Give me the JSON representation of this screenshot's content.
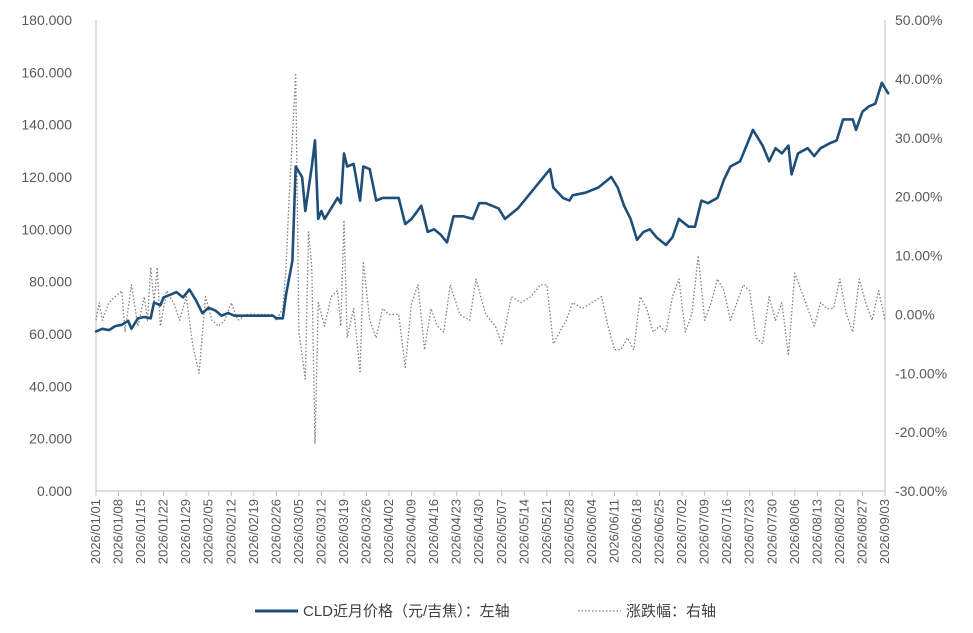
{
  "chart_data": {
    "type": "line",
    "x_ticks": [
      "2026/01/01",
      "2026/01/08",
      "2026/01/15",
      "2026/01/22",
      "2026/01/29",
      "2026/02/05",
      "2026/02/12",
      "2026/02/19",
      "2026/02/26",
      "2026/03/05",
      "2026/03/12",
      "2026/03/19",
      "2026/03/26",
      "2026/04/02",
      "2026/04/09",
      "2026/04/16",
      "2026/04/23",
      "2026/04/30",
      "2026/05/07",
      "2026/05/14",
      "2026/05/21",
      "2026/05/28",
      "2026/06/04",
      "2026/06/11",
      "2026/06/18",
      "2026/06/25",
      "2026/07/02",
      "2026/07/09",
      "2026/07/16",
      "2026/07/23",
      "2026/07/30",
      "2026/08/06",
      "2026/08/13",
      "2026/08/20",
      "2026/08/27",
      "2026/09/03"
    ],
    "y_left": {
      "ylim": [
        0,
        180
      ],
      "ticks": [
        "0.000",
        "20.000",
        "40.000",
        "60.000",
        "80.000",
        "100.000",
        "120.000",
        "140.000",
        "160.000",
        "180.000"
      ]
    },
    "y_right": {
      "ylim": [
        -30,
        50
      ],
      "ticks": [
        "-30.00%",
        "-20.00%",
        "-10.00%",
        "0.00%",
        "10.00%",
        "20.00%",
        "30.00%",
        "40.00%",
        "50.00%"
      ]
    },
    "grid": false,
    "legend_position": "bottom",
    "series": [
      {
        "name": "CLD近月价格（元/吉焦）：左轴",
        "axis": "left",
        "style": "solid",
        "color": "#1F4E79",
        "points": [
          [
            "2026/01/01",
            61
          ],
          [
            "2026/01/03",
            62
          ],
          [
            "2026/01/05",
            61.5
          ],
          [
            "2026/01/07",
            63
          ],
          [
            "2026/01/09",
            63.5
          ],
          [
            "2026/01/11",
            65
          ],
          [
            "2026/01/12",
            62
          ],
          [
            "2026/01/14",
            66
          ],
          [
            "2026/01/16",
            66.5
          ],
          [
            "2026/01/18",
            66
          ],
          [
            "2026/01/19",
            72
          ],
          [
            "2026/01/21",
            71
          ],
          [
            "2026/01/22",
            74
          ],
          [
            "2026/01/24",
            75
          ],
          [
            "2026/01/26",
            76
          ],
          [
            "2026/01/28",
            74
          ],
          [
            "2026/01/30",
            77
          ],
          [
            "2026/02/01",
            73
          ],
          [
            "2026/02/03",
            68
          ],
          [
            "2026/02/05",
            70
          ],
          [
            "2026/02/07",
            69
          ],
          [
            "2026/02/09",
            67
          ],
          [
            "2026/02/11",
            68
          ],
          [
            "2026/02/13",
            67
          ],
          [
            "2026/02/17",
            67
          ],
          [
            "2026/02/21",
            67
          ],
          [
            "2026/02/25",
            67
          ],
          [
            "2026/02/26",
            66
          ],
          [
            "2026/02/28",
            66
          ],
          [
            "2026/03/01",
            75
          ],
          [
            "2026/03/03",
            88
          ],
          [
            "2026/03/04",
            124
          ],
          [
            "2026/03/06",
            120
          ],
          [
            "2026/03/07",
            107
          ],
          [
            "2026/03/09",
            124
          ],
          [
            "2026/03/10",
            134
          ],
          [
            "2026/03/11",
            104
          ],
          [
            "2026/03/12",
            107
          ],
          [
            "2026/03/13",
            104
          ],
          [
            "2026/03/15",
            108
          ],
          [
            "2026/03/17",
            112
          ],
          [
            "2026/03/18",
            110
          ],
          [
            "2026/03/19",
            129
          ],
          [
            "2026/03/20",
            124
          ],
          [
            "2026/03/22",
            125
          ],
          [
            "2026/03/24",
            111
          ],
          [
            "2026/03/25",
            124
          ],
          [
            "2026/03/27",
            123
          ],
          [
            "2026/03/29",
            111
          ],
          [
            "2026/03/31",
            112
          ],
          [
            "2026/04/05",
            112
          ],
          [
            "2026/04/07",
            102
          ],
          [
            "2026/04/09",
            104
          ],
          [
            "2026/04/12",
            109
          ],
          [
            "2026/04/14",
            99
          ],
          [
            "2026/04/16",
            100
          ],
          [
            "2026/04/18",
            98
          ],
          [
            "2026/04/20",
            95
          ],
          [
            "2026/04/22",
            105
          ],
          [
            "2026/04/25",
            105
          ],
          [
            "2026/04/28",
            104
          ],
          [
            "2026/04/30",
            110
          ],
          [
            "2026/05/02",
            110
          ],
          [
            "2026/05/06",
            108
          ],
          [
            "2026/05/08",
            104
          ],
          [
            "2026/05/12",
            108
          ],
          [
            "2026/05/18",
            117
          ],
          [
            "2026/05/22",
            123
          ],
          [
            "2026/05/23",
            116
          ],
          [
            "2026/05/26",
            112
          ],
          [
            "2026/05/28",
            111
          ],
          [
            "2026/05/29",
            113
          ],
          [
            "2026/06/02",
            114
          ],
          [
            "2026/06/06",
            116
          ],
          [
            "2026/06/10",
            120
          ],
          [
            "2026/06/12",
            116
          ],
          [
            "2026/06/14",
            109
          ],
          [
            "2026/06/16",
            104
          ],
          [
            "2026/06/18",
            96
          ],
          [
            "2026/06/20",
            99
          ],
          [
            "2026/06/22",
            100
          ],
          [
            "2026/06/24",
            97
          ],
          [
            "2026/06/27",
            94
          ],
          [
            "2026/06/29",
            97
          ],
          [
            "2026/07/01",
            104
          ],
          [
            "2026/07/04",
            101
          ],
          [
            "2026/07/06",
            101
          ],
          [
            "2026/07/08",
            111
          ],
          [
            "2026/07/10",
            110
          ],
          [
            "2026/07/13",
            112
          ],
          [
            "2026/07/15",
            119
          ],
          [
            "2026/07/17",
            124
          ],
          [
            "2026/07/20",
            126
          ],
          [
            "2026/07/22",
            132
          ],
          [
            "2026/07/24",
            138
          ],
          [
            "2026/07/27",
            132
          ],
          [
            "2026/07/29",
            126
          ],
          [
            "2026/07/31",
            131
          ],
          [
            "2026/08/02",
            129
          ],
          [
            "2026/08/04",
            132
          ],
          [
            "2026/08/05",
            121
          ],
          [
            "2026/08/07",
            129
          ],
          [
            "2026/08/10",
            131
          ],
          [
            "2026/08/12",
            128
          ],
          [
            "2026/08/14",
            131
          ],
          [
            "2026/08/17",
            133
          ],
          [
            "2026/08/19",
            134
          ],
          [
            "2026/08/21",
            142
          ],
          [
            "2026/08/24",
            142
          ],
          [
            "2026/08/25",
            138
          ],
          [
            "2026/08/27",
            145
          ],
          [
            "2026/08/29",
            147
          ],
          [
            "2026/08/31",
            148
          ],
          [
            "2026/09/02",
            156
          ],
          [
            "2026/09/04",
            152
          ]
        ]
      },
      {
        "name": "涨跌幅：右轴",
        "axis": "right",
        "style": "dotted",
        "color": "#7f7f7f",
        "points": [
          [
            "2026/01/01",
            -1
          ],
          [
            "2026/01/02",
            2
          ],
          [
            "2026/01/03",
            -1
          ],
          [
            "2026/01/05",
            2
          ],
          [
            "2026/01/07",
            3
          ],
          [
            "2026/01/09",
            4
          ],
          [
            "2026/01/10",
            -3
          ],
          [
            "2026/01/12",
            5
          ],
          [
            "2026/01/14",
            -2
          ],
          [
            "2026/01/16",
            3
          ],
          [
            "2026/01/17",
            -1
          ],
          [
            "2026/01/18",
            8
          ],
          [
            "2026/01/19",
            2
          ],
          [
            "2026/01/20",
            8
          ],
          [
            "2026/01/21",
            -2
          ],
          [
            "2026/01/23",
            4
          ],
          [
            "2026/01/25",
            2
          ],
          [
            "2026/01/27",
            -1
          ],
          [
            "2026/01/29",
            3
          ],
          [
            "2026/01/31",
            -5
          ],
          [
            "2026/02/02",
            -10
          ],
          [
            "2026/02/04",
            3
          ],
          [
            "2026/02/06",
            -1
          ],
          [
            "2026/02/08",
            -2
          ],
          [
            "2026/02/10",
            -1
          ],
          [
            "2026/02/12",
            2
          ],
          [
            "2026/02/14",
            -1
          ],
          [
            "2026/02/17",
            0
          ],
          [
            "2026/02/21",
            0
          ],
          [
            "2026/02/25",
            0
          ],
          [
            "2026/02/26",
            -1
          ],
          [
            "2026/02/28",
            1
          ],
          [
            "2026/03/01",
            8
          ],
          [
            "2026/03/02",
            20
          ],
          [
            "2026/03/03",
            30
          ],
          [
            "2026/03/04",
            41
          ],
          [
            "2026/03/05",
            -3
          ],
          [
            "2026/03/07",
            -11
          ],
          [
            "2026/03/08",
            14
          ],
          [
            "2026/03/09",
            8
          ],
          [
            "2026/03/10",
            -22
          ],
          [
            "2026/03/11",
            2
          ],
          [
            "2026/03/13",
            -2
          ],
          [
            "2026/03/15",
            3
          ],
          [
            "2026/03/17",
            4
          ],
          [
            "2026/03/18",
            -2
          ],
          [
            "2026/03/19",
            16
          ],
          [
            "2026/03/20",
            -4
          ],
          [
            "2026/03/22",
            1
          ],
          [
            "2026/03/24",
            -10
          ],
          [
            "2026/03/25",
            9
          ],
          [
            "2026/03/27",
            -1
          ],
          [
            "2026/03/29",
            -4
          ],
          [
            "2026/03/31",
            1
          ],
          [
            "2026/04/02",
            0
          ],
          [
            "2026/04/05",
            0
          ],
          [
            "2026/04/07",
            -9
          ],
          [
            "2026/04/09",
            2
          ],
          [
            "2026/04/11",
            5
          ],
          [
            "2026/04/13",
            -6
          ],
          [
            "2026/04/15",
            1
          ],
          [
            "2026/04/17",
            -2
          ],
          [
            "2026/04/19",
            -3
          ],
          [
            "2026/04/21",
            5
          ],
          [
            "2026/04/24",
            0
          ],
          [
            "2026/04/27",
            -1
          ],
          [
            "2026/04/29",
            6
          ],
          [
            "2026/05/02",
            0
          ],
          [
            "2026/05/05",
            -2
          ],
          [
            "2026/05/07",
            -5
          ],
          [
            "2026/05/10",
            3
          ],
          [
            "2026/05/13",
            2
          ],
          [
            "2026/05/16",
            3
          ],
          [
            "2026/05/19",
            5
          ],
          [
            "2026/05/21",
            5
          ],
          [
            "2026/05/23",
            -5
          ],
          [
            "2026/05/25",
            -3
          ],
          [
            "2026/05/27",
            -1
          ],
          [
            "2026/05/29",
            2
          ],
          [
            "2026/06/01",
            1
          ],
          [
            "2026/06/04",
            2
          ],
          [
            "2026/06/07",
            3
          ],
          [
            "2026/06/09",
            -2
          ],
          [
            "2026/06/11",
            -6
          ],
          [
            "2026/06/13",
            -6
          ],
          [
            "2026/06/15",
            -4
          ],
          [
            "2026/06/17",
            -6
          ],
          [
            "2026/06/19",
            3
          ],
          [
            "2026/06/21",
            1
          ],
          [
            "2026/06/23",
            -3
          ],
          [
            "2026/06/25",
            -2
          ],
          [
            "2026/06/27",
            -3
          ],
          [
            "2026/06/29",
            3
          ],
          [
            "2026/07/01",
            6
          ],
          [
            "2026/07/03",
            -3
          ],
          [
            "2026/07/05",
            0
          ],
          [
            "2026/07/07",
            10
          ],
          [
            "2026/07/09",
            -1
          ],
          [
            "2026/07/11",
            2
          ],
          [
            "2026/07/13",
            6
          ],
          [
            "2026/07/15",
            4
          ],
          [
            "2026/07/17",
            -1
          ],
          [
            "2026/07/19",
            2
          ],
          [
            "2026/07/21",
            5
          ],
          [
            "2026/07/23",
            4
          ],
          [
            "2026/07/25",
            -4
          ],
          [
            "2026/07/27",
            -5
          ],
          [
            "2026/07/29",
            3
          ],
          [
            "2026/07/31",
            -1
          ],
          [
            "2026/08/02",
            2
          ],
          [
            "2026/08/04",
            -7
          ],
          [
            "2026/08/06",
            7
          ],
          [
            "2026/08/08",
            4
          ],
          [
            "2026/08/10",
            1
          ],
          [
            "2026/08/12",
            -2
          ],
          [
            "2026/08/14",
            2
          ],
          [
            "2026/08/16",
            1
          ],
          [
            "2026/08/18",
            1
          ],
          [
            "2026/08/20",
            6
          ],
          [
            "2026/08/22",
            0
          ],
          [
            "2026/08/24",
            -3
          ],
          [
            "2026/08/26",
            6
          ],
          [
            "2026/08/28",
            2
          ],
          [
            "2026/08/30",
            -1
          ],
          [
            "2026/09/01",
            4
          ],
          [
            "2026/09/03",
            -1
          ]
        ]
      }
    ]
  }
}
